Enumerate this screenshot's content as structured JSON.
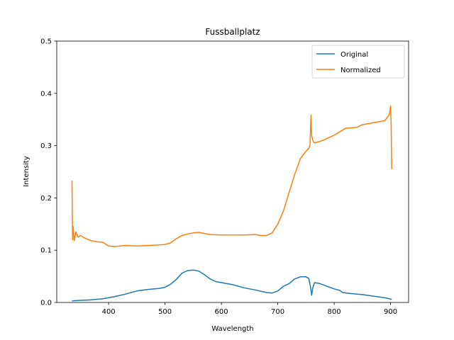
{
  "chart_data": {
    "type": "line",
    "title": "Fussballplatz",
    "xlabel": "Wavelength",
    "ylabel": "Intensity",
    "xlim": [
      308,
      932
    ],
    "ylim": [
      0,
      0.5
    ],
    "x_ticks": [
      400,
      500,
      600,
      700,
      800,
      900
    ],
    "y_ticks": [
      0.0,
      0.1,
      0.2,
      0.3,
      0.4,
      0.5
    ],
    "y_tick_labels": [
      "0.0",
      "0.1",
      "0.2",
      "0.3",
      "0.4",
      "0.5"
    ],
    "legend_position": "top-right",
    "grid": false,
    "series": [
      {
        "name": "Original",
        "color": "#1f77b4",
        "points": [
          [
            335,
            0.003
          ],
          [
            350,
            0.004
          ],
          [
            370,
            0.005
          ],
          [
            390,
            0.007
          ],
          [
            410,
            0.011
          ],
          [
            430,
            0.016
          ],
          [
            450,
            0.022
          ],
          [
            470,
            0.025
          ],
          [
            490,
            0.027
          ],
          [
            500,
            0.029
          ],
          [
            510,
            0.035
          ],
          [
            520,
            0.044
          ],
          [
            530,
            0.056
          ],
          [
            540,
            0.061
          ],
          [
            550,
            0.062
          ],
          [
            560,
            0.06
          ],
          [
            570,
            0.053
          ],
          [
            580,
            0.045
          ],
          [
            590,
            0.04
          ],
          [
            600,
            0.038
          ],
          [
            620,
            0.034
          ],
          [
            640,
            0.028
          ],
          [
            660,
            0.024
          ],
          [
            680,
            0.019
          ],
          [
            690,
            0.018
          ],
          [
            700,
            0.022
          ],
          [
            710,
            0.031
          ],
          [
            720,
            0.036
          ],
          [
            730,
            0.045
          ],
          [
            740,
            0.049
          ],
          [
            750,
            0.049
          ],
          [
            755,
            0.046
          ],
          [
            758,
            0.03
          ],
          [
            760,
            0.014
          ],
          [
            762,
            0.028
          ],
          [
            765,
            0.038
          ],
          [
            775,
            0.036
          ],
          [
            790,
            0.03
          ],
          [
            800,
            0.026
          ],
          [
            810,
            0.023
          ],
          [
            815,
            0.019
          ],
          [
            830,
            0.017
          ],
          [
            850,
            0.015
          ],
          [
            870,
            0.012
          ],
          [
            890,
            0.009
          ],
          [
            902,
            0.006
          ]
        ]
      },
      {
        "name": "Normalized",
        "color": "#ff7f0e",
        "points": [
          [
            335,
            0.233
          ],
          [
            336,
            0.12
          ],
          [
            337,
            0.145
          ],
          [
            339,
            0.118
          ],
          [
            342,
            0.135
          ],
          [
            346,
            0.125
          ],
          [
            350,
            0.128
          ],
          [
            360,
            0.122
          ],
          [
            370,
            0.118
          ],
          [
            380,
            0.116
          ],
          [
            390,
            0.115
          ],
          [
            400,
            0.108
          ],
          [
            410,
            0.107
          ],
          [
            430,
            0.109
          ],
          [
            450,
            0.108
          ],
          [
            470,
            0.109
          ],
          [
            490,
            0.11
          ],
          [
            500,
            0.111
          ],
          [
            510,
            0.114
          ],
          [
            520,
            0.122
          ],
          [
            530,
            0.128
          ],
          [
            540,
            0.131
          ],
          [
            550,
            0.133
          ],
          [
            560,
            0.134
          ],
          [
            570,
            0.132
          ],
          [
            580,
            0.13
          ],
          [
            600,
            0.129
          ],
          [
            620,
            0.129
          ],
          [
            640,
            0.129
          ],
          [
            660,
            0.13
          ],
          [
            670,
            0.128
          ],
          [
            680,
            0.128
          ],
          [
            690,
            0.133
          ],
          [
            700,
            0.15
          ],
          [
            710,
            0.175
          ],
          [
            720,
            0.21
          ],
          [
            730,
            0.245
          ],
          [
            740,
            0.275
          ],
          [
            750,
            0.289
          ],
          [
            755,
            0.295
          ],
          [
            757,
            0.3
          ],
          [
            758,
            0.33
          ],
          [
            759,
            0.358
          ],
          [
            760,
            0.32
          ],
          [
            762,
            0.31
          ],
          [
            765,
            0.305
          ],
          [
            780,
            0.31
          ],
          [
            800,
            0.32
          ],
          [
            820,
            0.333
          ],
          [
            840,
            0.335
          ],
          [
            850,
            0.34
          ],
          [
            870,
            0.344
          ],
          [
            880,
            0.346
          ],
          [
            890,
            0.348
          ],
          [
            898,
            0.36
          ],
          [
            900,
            0.376
          ],
          [
            901,
            0.34
          ],
          [
            902,
            0.255
          ]
        ]
      }
    ]
  }
}
